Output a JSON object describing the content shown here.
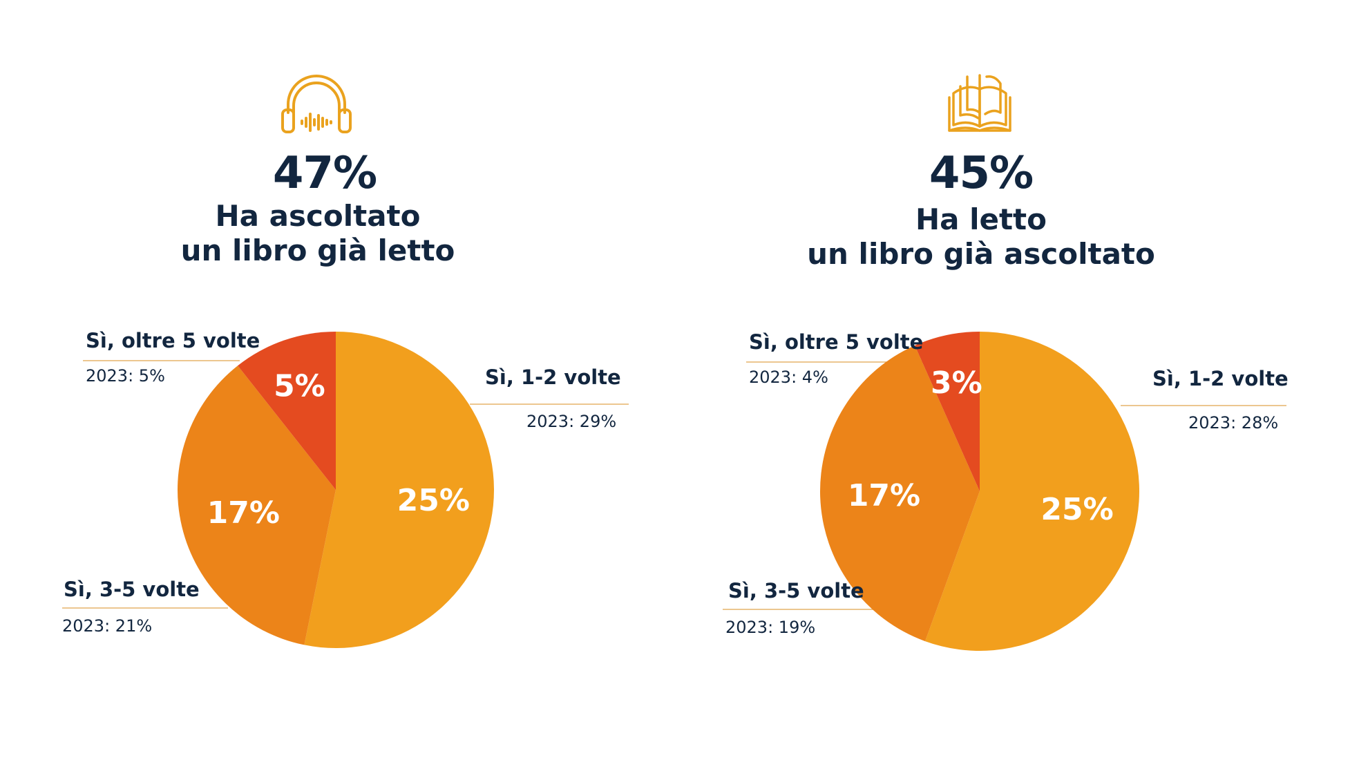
{
  "colors": {
    "accent_icon": "#eaa21e",
    "title_text": "#12263f",
    "slice_1_2": "#f29f1d",
    "slice_3_5": "#ec8419",
    "slice_over5": "#e44b20",
    "leader_line": "#e5b46a"
  },
  "panels": [
    {
      "icon": "headphones-icon",
      "headline_pct": "47%",
      "headline_line1": "Ha ascoltato",
      "headline_line2": "un libro già letto"
    },
    {
      "icon": "open-book-icon",
      "headline_pct": "45%",
      "headline_line1": "Ha letto",
      "headline_line2": "un libro già ascoltato"
    }
  ],
  "chart_data": [
    {
      "type": "pie",
      "title": "",
      "slices": [
        {
          "name": "Sì, 1-2 volte",
          "value": 25,
          "label": "25%",
          "note": "2023: 29%"
        },
        {
          "name": "Sì, 3-5 volte",
          "value": 17,
          "label": "17%",
          "note": "2023: 21%"
        },
        {
          "name": "Sì, oltre 5 volte",
          "value": 5,
          "label": "5%",
          "note": "2023: 5%"
        }
      ]
    },
    {
      "type": "pie",
      "title": "",
      "slices": [
        {
          "name": "Sì, 1-2 volte",
          "value": 25,
          "label": "25%",
          "note": "2023: 28%"
        },
        {
          "name": "Sì, 3-5 volte",
          "value": 17,
          "label": "17%",
          "note": "2023: 19%"
        },
        {
          "name": "Sì, oltre 5 volte",
          "value": 3,
          "label": "3%",
          "note": "2023: 4%"
        }
      ]
    }
  ]
}
